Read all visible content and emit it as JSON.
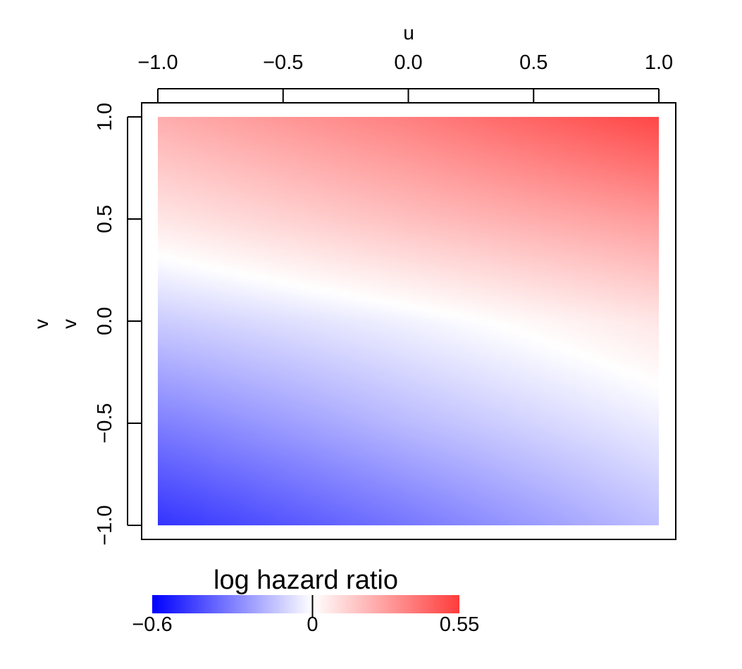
{
  "chart_data": {
    "type": "heatmap",
    "xlabel": "u",
    "ylabel": "v",
    "ylabel_secondary": "v",
    "xlim": [
      -1.0,
      1.0
    ],
    "ylim": [
      -1.0,
      1.0
    ],
    "x_ticks": [
      -1.0,
      -0.5,
      0.0,
      0.5,
      1.0
    ],
    "x_tick_labels": [
      "−1.0",
      "−0.5",
      "0.0",
      "0.5",
      "1.0"
    ],
    "y_ticks": [
      -1.0,
      -0.5,
      0.0,
      0.5,
      1.0
    ],
    "y_tick_labels": [
      "−1.0",
      "−0.5",
      "0.0",
      "0.5",
      "1.0"
    ],
    "x_axis_position": "top",
    "grid": false,
    "colorbar": {
      "title": "log hazard ratio",
      "min": -0.6,
      "mid": 0,
      "max": 0.55,
      "labels": [
        "−0.6",
        "0",
        "0.55"
      ],
      "colors": {
        "low": "#0000ff",
        "mid": "#ffffff",
        "high": "#ff3c3c"
      }
    },
    "surface_samples": {
      "u": [
        -1.0,
        0.0,
        1.0
      ],
      "v": [
        -1.0,
        -0.5,
        0.0,
        0.5,
        1.0
      ],
      "z": [
        [
          -0.48,
          -0.32,
          -0.15
        ],
        [
          -0.3,
          -0.16,
          -0.04
        ],
        [
          -0.12,
          -0.03,
          0.07
        ],
        [
          0.07,
          0.18,
          0.28
        ],
        [
          0.23,
          0.36,
          0.52
        ]
      ]
    }
  }
}
